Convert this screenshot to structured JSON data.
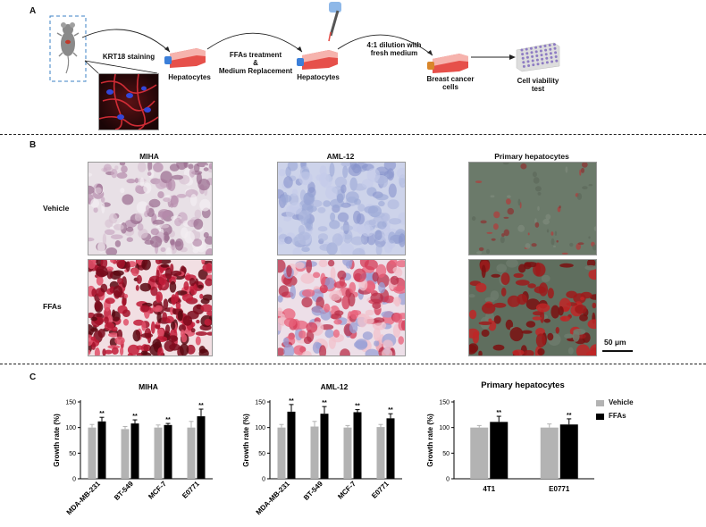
{
  "panelA": {
    "letter": "A",
    "staining_label": "KRT18 staining",
    "step1_label": "Hepatocytes",
    "treatment_label_1": "FFAs treatment",
    "treatment_label_2": "&",
    "treatment_label_3": "Medium Replacement",
    "step2_label": "Hepatocytes",
    "dilution_label_1": "4:1 dilution with",
    "dilution_label_2": "fresh medium",
    "step3_label_1": "Breast cancer",
    "step3_label_2": "cells",
    "step4_label_1": "Cell viability",
    "step4_label_2": "test"
  },
  "panelB": {
    "letter": "B",
    "columns": [
      "MIHA",
      "AML-12",
      "Primary hepatocytes"
    ],
    "rows": [
      "Vehicle",
      "FFAs"
    ],
    "scale_bar": "50 μm"
  },
  "panelC": {
    "letter": "C",
    "legend": [
      "Vehicle",
      "FFAs"
    ],
    "colors": {
      "vehicle": "#b3b3b3",
      "ffas": "#000000"
    }
  },
  "chart_data": [
    {
      "type": "bar",
      "title": "MIHA",
      "ylabel": "Growth rate (%)",
      "ylim": [
        0,
        150
      ],
      "yticks": [
        0,
        50,
        100,
        150
      ],
      "categories": [
        "MDA-MB-231",
        "BT-549",
        "MCF-7",
        "E0771"
      ],
      "series": [
        {
          "name": "Vehicle",
          "values": [
            100,
            97,
            100,
            100
          ],
          "errors": [
            6,
            5,
            5,
            12
          ]
        },
        {
          "name": "FFAs",
          "values": [
            112,
            108,
            105,
            122
          ],
          "errors": [
            8,
            7,
            3,
            14
          ]
        }
      ],
      "annotations": [
        "**",
        "**",
        "**",
        "**"
      ]
    },
    {
      "type": "bar",
      "title": "AML-12",
      "ylabel": "Growth rate (%)",
      "ylim": [
        0,
        150
      ],
      "yticks": [
        0,
        50,
        100,
        150
      ],
      "categories": [
        "MDA-MB-231",
        "BT-549",
        "MCF-7",
        "E0771"
      ],
      "series": [
        {
          "name": "Vehicle",
          "values": [
            100,
            102,
            100,
            101
          ],
          "errors": [
            6,
            10,
            4,
            5
          ]
        },
        {
          "name": "FFAs",
          "values": [
            131,
            127,
            130,
            118
          ],
          "errors": [
            14,
            14,
            5,
            9
          ]
        }
      ],
      "annotations": [
        "**",
        "**",
        "**",
        "**"
      ]
    },
    {
      "type": "bar",
      "title": "Primary hepatocytes",
      "ylabel": "Growth rate (%)",
      "ylim": [
        0,
        150
      ],
      "yticks": [
        0,
        50,
        100,
        150
      ],
      "categories": [
        "4T1",
        "E0771"
      ],
      "series": [
        {
          "name": "Vehicle",
          "values": [
            100,
            100
          ],
          "errors": [
            4,
            7
          ]
        },
        {
          "name": "FFAs",
          "values": [
            111,
            106
          ],
          "errors": [
            11,
            11
          ]
        }
      ],
      "annotations": [
        "**",
        "**"
      ]
    }
  ]
}
